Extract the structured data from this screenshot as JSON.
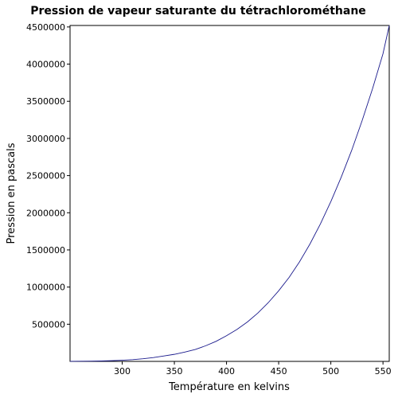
{
  "chart_data": {
    "type": "line",
    "title": "Pression de vapeur saturante du tétrachlorométhane",
    "x_label": "Température en kelvins",
    "y_label": "Pression en pascals",
    "x": [
      250,
      260,
      270,
      280,
      290,
      300,
      310,
      320,
      330,
      340,
      350,
      360,
      370,
      380,
      390,
      400,
      410,
      420,
      430,
      440,
      450,
      460,
      470,
      480,
      490,
      500,
      510,
      520,
      530,
      540,
      550,
      556
    ],
    "series": [
      {
        "name": "Pression",
        "color": "#1a1a8c",
        "values": [
          900,
          1700,
          3100,
          5500,
          9300,
          15000,
          23000,
          35000,
          51000,
          73000,
          95000,
          125000,
          160000,
          210000,
          270000,
          345000,
          430000,
          530000,
          650000,
          790000,
          950000,
          1130000,
          1340000,
          1580000,
          1850000,
          2150000,
          2480000,
          2840000,
          3240000,
          3670000,
          4140000,
          4520000
        ]
      }
    ],
    "xlim": [
      250,
      556
    ],
    "ylim": [
      0,
      4520000
    ],
    "xticks": [
      300,
      350,
      400,
      450,
      500,
      550
    ],
    "yticks": [
      500000,
      1000000,
      1500000,
      2000000,
      2500000,
      3000000,
      3500000,
      4000000,
      4500000
    ]
  }
}
